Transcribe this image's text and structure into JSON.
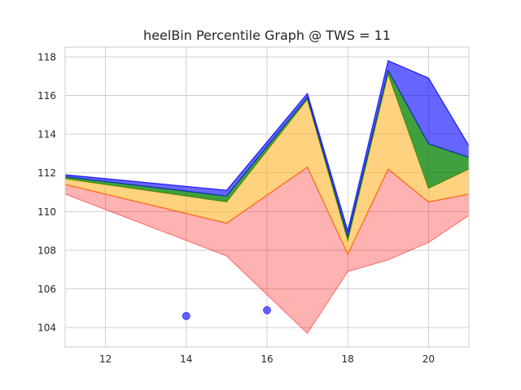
{
  "chart_data": {
    "type": "area",
    "title": "heelBin Percentile Graph @ TWS = 11",
    "xlabel": "",
    "ylabel": "",
    "xlim": [
      11,
      21
    ],
    "ylim": [
      103,
      118.5
    ],
    "xticks": [
      12,
      14,
      16,
      18,
      20
    ],
    "yticks": [
      104,
      106,
      108,
      110,
      112,
      114,
      116,
      118
    ],
    "grid": true,
    "x": [
      11,
      15,
      17,
      18,
      19,
      20,
      21
    ],
    "bands": [
      {
        "fill": "#ff0000",
        "alpha": 0.3,
        "edge": "#ff0000",
        "lower": [
          110.9,
          107.7,
          103.7,
          106.9,
          107.5,
          108.4,
          109.8
        ],
        "upper": [
          111.4,
          109.4,
          112.3,
          107.8,
          112.2,
          110.5,
          110.9
        ]
      },
      {
        "fill": "#ffa500",
        "alpha": 0.5,
        "edge": "#ffa500",
        "lower": [
          111.4,
          109.4,
          112.3,
          107.8,
          112.2,
          110.5,
          110.9
        ],
        "upper": [
          111.7,
          110.5,
          115.8,
          108.5,
          117.1,
          111.2,
          112.2
        ]
      },
      {
        "fill": "#008000",
        "alpha": 0.75,
        "edge": "#008000",
        "lower": [
          111.7,
          110.5,
          115.8,
          108.5,
          117.1,
          111.2,
          112.2
        ],
        "upper": [
          111.8,
          110.8,
          115.9,
          108.7,
          117.3,
          113.5,
          112.8
        ]
      },
      {
        "fill": "#0000ff",
        "alpha": 0.6,
        "edge": "#0000ff",
        "lower": [
          111.8,
          110.8,
          115.9,
          108.7,
          117.3,
          113.5,
          112.8
        ],
        "upper": [
          111.9,
          111.1,
          116.1,
          109.0,
          117.8,
          116.9,
          113.4
        ]
      }
    ],
    "scatter": {
      "color": "#0000ff",
      "alpha": 0.6,
      "points": [
        {
          "x": 14,
          "y": 104.6
        },
        {
          "x": 16,
          "y": 104.9
        }
      ]
    }
  }
}
